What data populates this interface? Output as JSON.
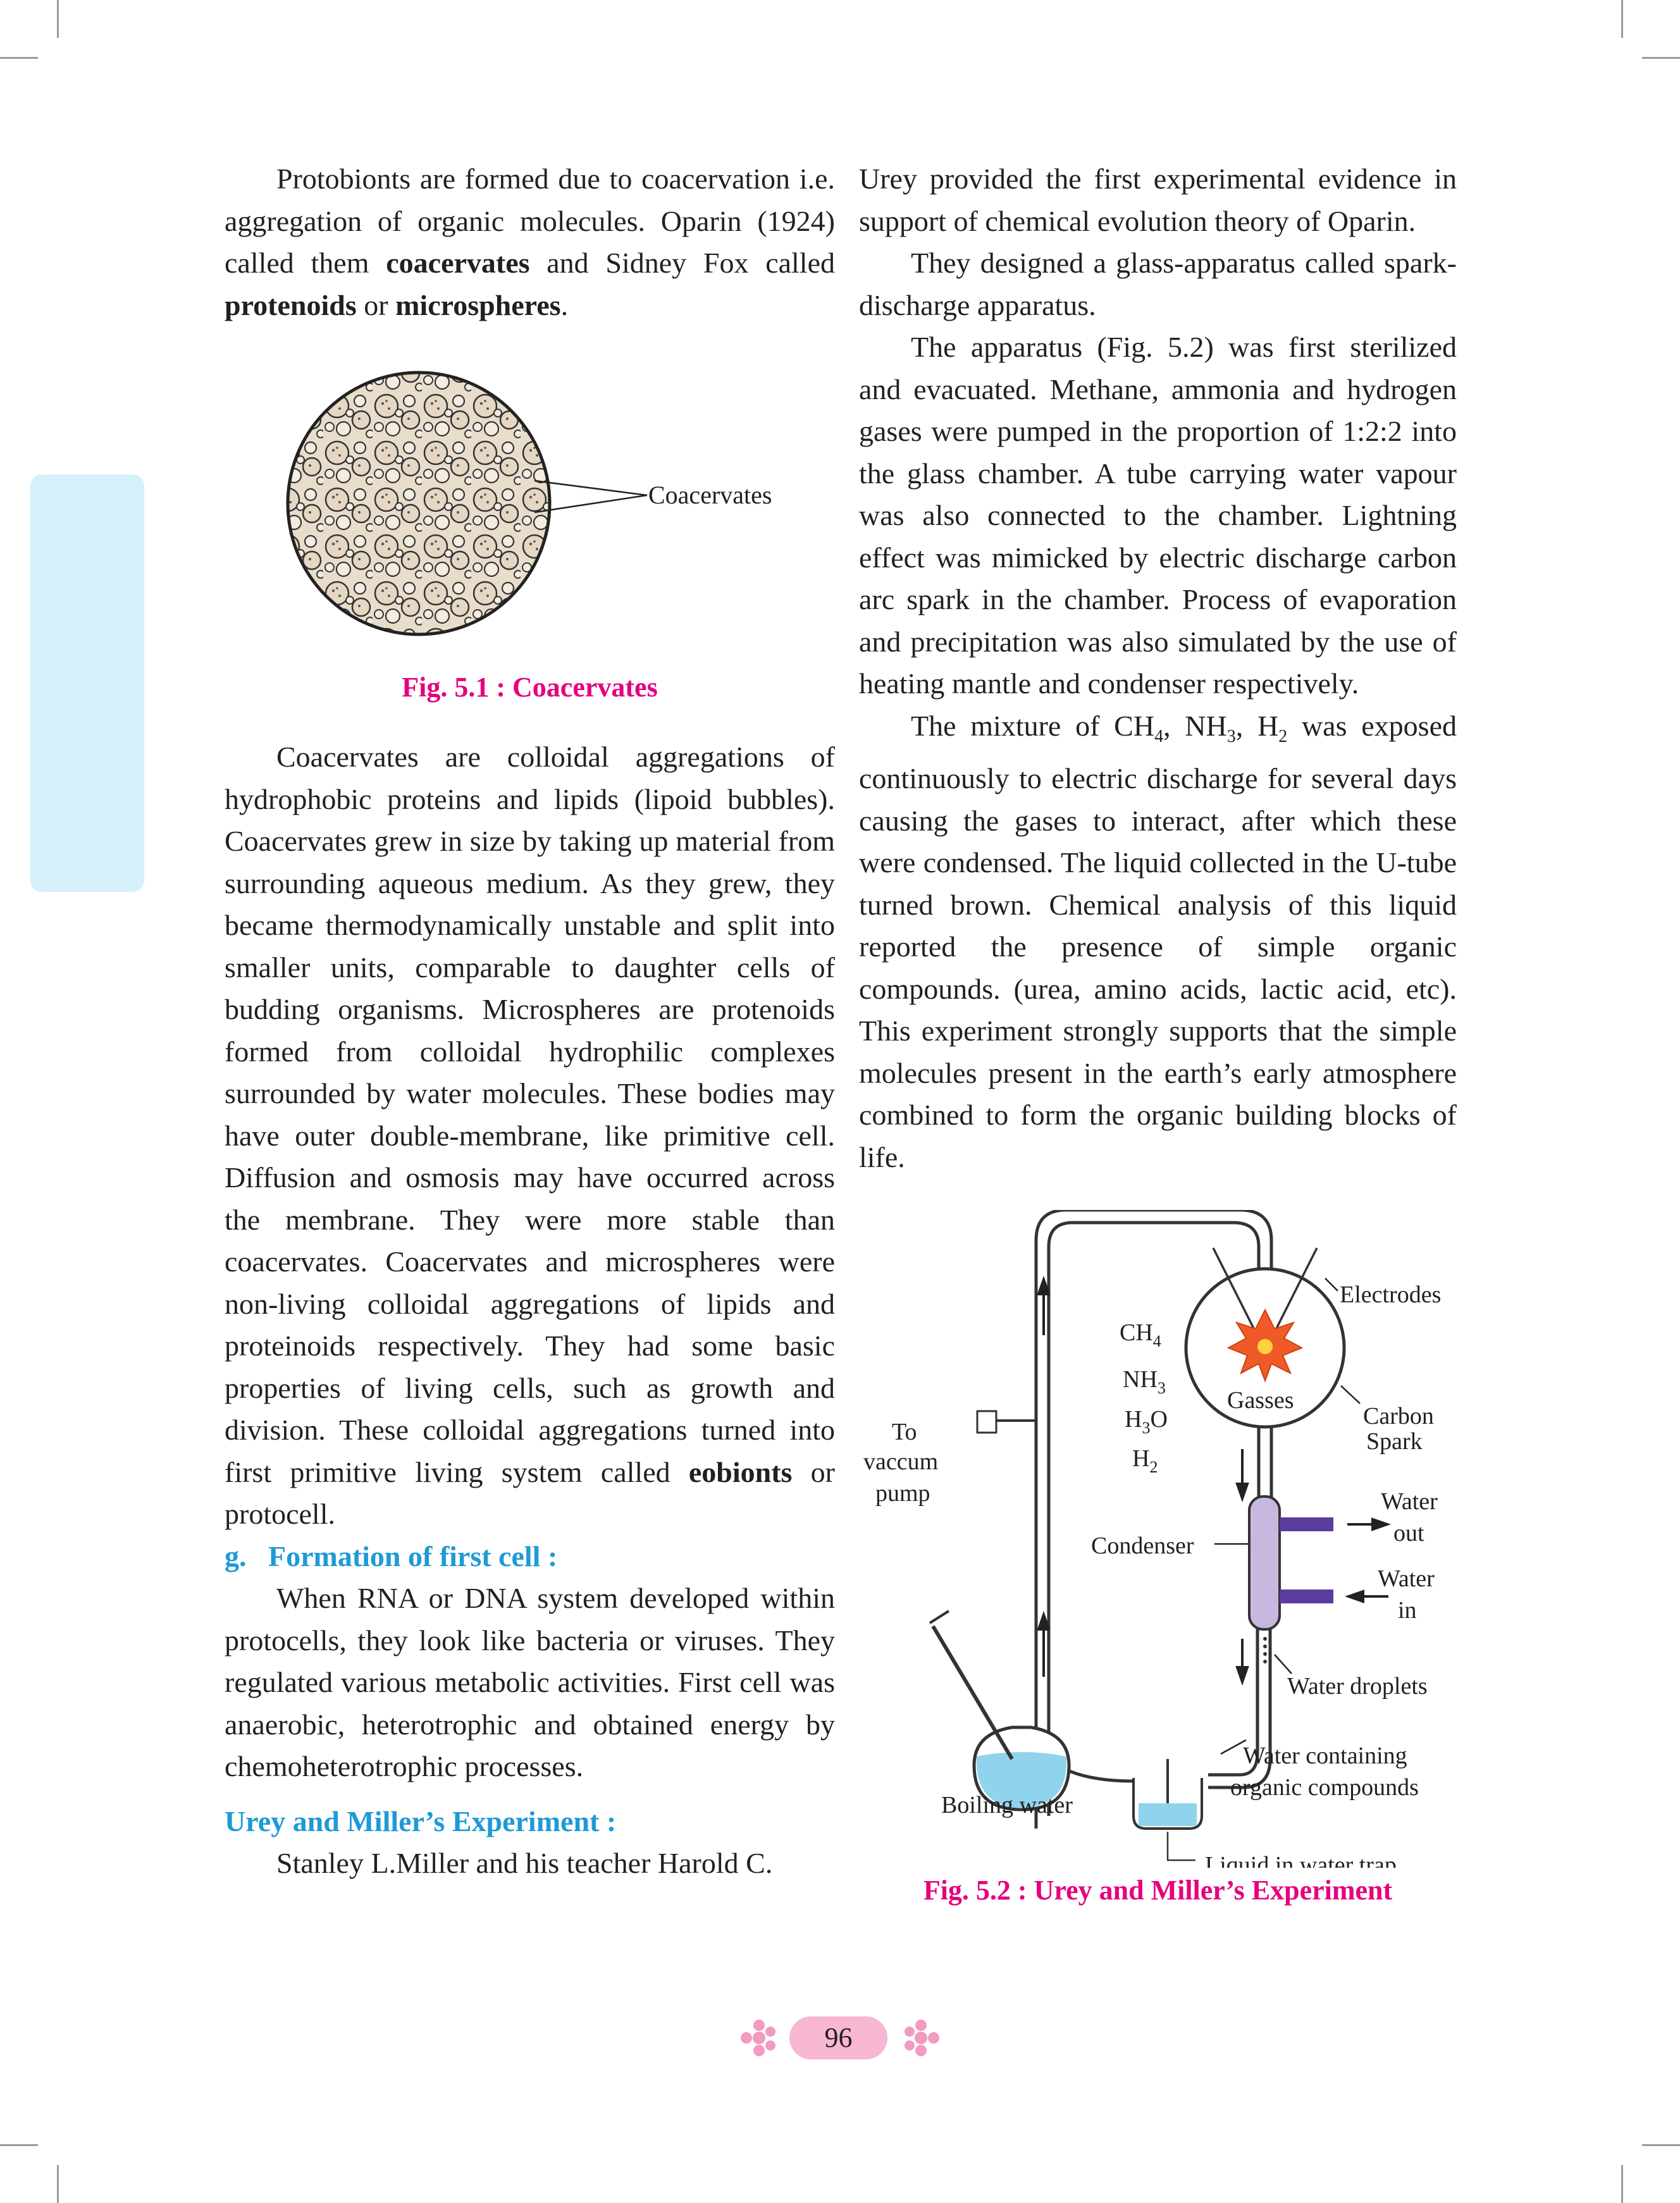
{
  "left_column": {
    "para1": {
      "t1": "Protobionts are formed due to coacervation i.e. aggregation of organic molecules. Oparin (1924) called them ",
      "b1": "coacervates",
      "t2": " and Sidney Fox called ",
      "b2": "protenoids",
      "t3": " or ",
      "b3": "microspheres",
      "t4": "."
    },
    "fig1": {
      "label": "Coacervates",
      "caption": "Fig. 5.1 : Coacervates"
    },
    "para2": {
      "t1": "Coacervates are colloidal aggregations of hydrophobic proteins and lipids (lipoid bubbles). Coacervates grew in size by taking up material from surrounding aqueous medium. As they grew, they became thermodynamically unstable and split into smaller units, comparable to daughter cells of budding organisms. Microspheres are protenoids formed from colloidal hydrophilic complexes surrounded by water molecules. These bodies may have outer double-membrane, like primitive cell. Diffusion and osmosis may have occurred across the membrane. They were more stable than coacervates. Coacervates and microspheres were non-living colloidal aggregations of lipids and proteinoids respectively. They had some basic properties of living cells, such as growth and division. These colloidal aggregations turned into first primitive living system called ",
      "b1": "eobionts",
      "t2": " or protocell."
    },
    "heading_g": "g.   Formation of first cell :",
    "para3": "When RNA or DNA system developed within protocells, they look like bacteria or viruses. They regulated various metabolic activities. First cell was anaerobic, heterotrophic and obtained energy by chemoheterotrophic processes.",
    "heading_urey": "Urey and Miller’s Experiment :",
    "para4": "Stanley L.Miller and his teacher Harold C."
  },
  "right_column": {
    "para1": "Urey provided the first experimental evidence in support of chemical evolution theory of Oparin.",
    "para2": "They designed a glass-apparatus called spark-discharge apparatus.",
    "para3": "The apparatus (Fig. 5.2) was first sterilized and evacuated. Methane, ammonia and hydrogen gases were pumped in the proportion of 1:2:2 into the glass chamber. A tube carrying water vapour was also connected to the chamber. Lightning effect was mimicked by electric discharge carbon arc spark in the chamber. Process of evaporation and precipitation was also simulated by the use of heating mantle and condenser respectively.",
    "para4": {
      "t1": "The mixture of CH",
      "s1": "4",
      "t2": ", NH",
      "s2": "3",
      "t3": ", H",
      "s3": "2",
      "t4": " was exposed continuously to electric discharge for several days causing the gases to interact, after which these were condensed. The liquid collected in the U-tube turned brown. Chemical analysis of this liquid reported the presence of simple organic compounds. (urea, amino acids, lactic acid, etc). This experiment strongly supports that the simple molecules present in the earth’s early atmosphere combined to form the organic building blocks of life."
    },
    "fig2": {
      "electrodes": "Electrodes",
      "ch": "CH",
      "ch_sub": "4",
      "nh": "NH",
      "nh_sub": "3",
      "h": "H",
      "h_sub": "3",
      "h_o": "O",
      "h2": "H",
      "h2_sub": "2",
      "gasses": "Gasses",
      "carbon": "Carbon",
      "spark": "Spark",
      "to": "To",
      "vaccum": "vaccum",
      "pump": "pump",
      "water_out_1": "Water",
      "water_out_2": "out",
      "condenser": "Condenser",
      "water_in_1": "Water",
      "water_in_2": "in",
      "water_droplets": "Water droplets",
      "water_containing": "Water containing",
      "organic_compounds": "organic compounds",
      "boiling_water": "Boiling water",
      "liquid_trap": "Liquid in water trap",
      "caption": "Fig. 5.2 : Urey and Miller’s Experiment"
    }
  },
  "footer": {
    "page_number": "96"
  }
}
